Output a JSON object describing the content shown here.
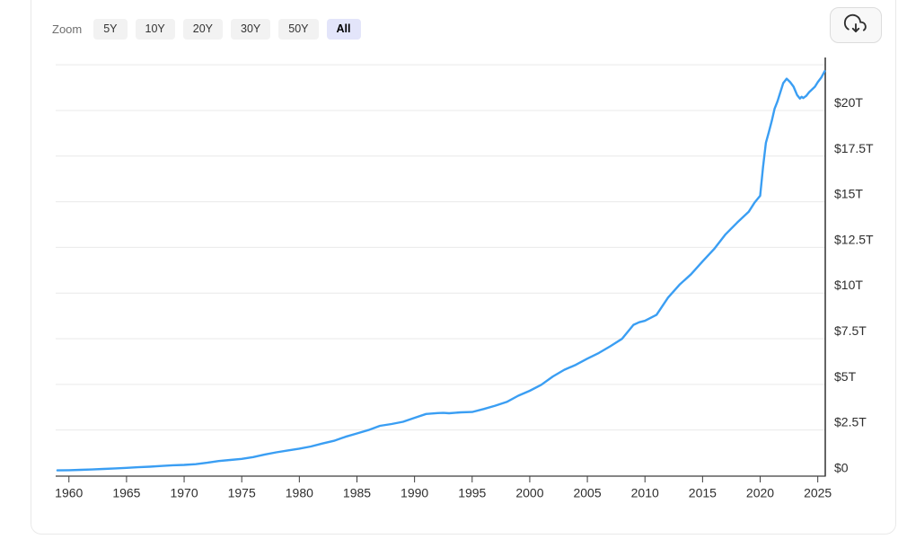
{
  "toolbar": {
    "zoom_label": "Zoom",
    "buttons": [
      {
        "label": "5Y",
        "active": false
      },
      {
        "label": "10Y",
        "active": false
      },
      {
        "label": "20Y",
        "active": false
      },
      {
        "label": "30Y",
        "active": false
      },
      {
        "label": "50Y",
        "active": false
      },
      {
        "label": "All",
        "active": true
      }
    ],
    "active_button_bg": "#e3e5fa",
    "button_bg": "#f2f2f2",
    "download_icon": "cloud-download-icon"
  },
  "chart_data": {
    "type": "line",
    "title": "",
    "xlabel": "",
    "ylabel": "",
    "grid": "horizontal",
    "legend": "none",
    "line_color": "#3a9ef3",
    "gridline_color": "#e9e9e9",
    "axis_color": "#3d3d3d",
    "x_range": [
      1958.85,
      2025.65
    ],
    "y_range": [
      0,
      22.9
    ],
    "x_ticks": [
      "1960",
      "1965",
      "1970",
      "1975",
      "1980",
      "1985",
      "1990",
      "1995",
      "2000",
      "2005",
      "2010",
      "2015",
      "2020",
      "2025"
    ],
    "x_tick_values": [
      1960,
      1965,
      1970,
      1975,
      1980,
      1985,
      1990,
      1995,
      2000,
      2005,
      2010,
      2015,
      2020,
      2025
    ],
    "y_ticks": [
      {
        "value": 0,
        "label": "$0"
      },
      {
        "value": 2.5,
        "label": "$2.5T"
      },
      {
        "value": 5,
        "label": "$5T"
      },
      {
        "value": 7.5,
        "label": "$7.5T"
      },
      {
        "value": 10,
        "label": "$10T"
      },
      {
        "value": 12.5,
        "label": "$12.5T"
      },
      {
        "value": 15,
        "label": "$15T"
      },
      {
        "value": 17.5,
        "label": "$17.5T"
      },
      {
        "value": 20,
        "label": "$20T"
      },
      {
        "value": 22.5,
        "label": ""
      }
    ],
    "series": [
      {
        "name": "",
        "points": [
          [
            1959,
            0.29
          ],
          [
            1960,
            0.3
          ],
          [
            1961,
            0.32
          ],
          [
            1962,
            0.34
          ],
          [
            1963,
            0.37
          ],
          [
            1964,
            0.4
          ],
          [
            1965,
            0.43
          ],
          [
            1966,
            0.46
          ],
          [
            1967,
            0.49
          ],
          [
            1968,
            0.53
          ],
          [
            1969,
            0.57
          ],
          [
            1970,
            0.59
          ],
          [
            1971,
            0.63
          ],
          [
            1972,
            0.71
          ],
          [
            1973,
            0.8
          ],
          [
            1974,
            0.86
          ],
          [
            1975,
            0.92
          ],
          [
            1976,
            1.02
          ],
          [
            1977,
            1.16
          ],
          [
            1978,
            1.28
          ],
          [
            1979,
            1.38
          ],
          [
            1980,
            1.48
          ],
          [
            1981,
            1.6
          ],
          [
            1982,
            1.76
          ],
          [
            1983,
            1.91
          ],
          [
            1984,
            2.13
          ],
          [
            1985,
            2.31
          ],
          [
            1986,
            2.5
          ],
          [
            1987,
            2.73
          ],
          [
            1988,
            2.83
          ],
          [
            1989,
            2.95
          ],
          [
            1990,
            3.17
          ],
          [
            1991,
            3.38
          ],
          [
            1992,
            3.43
          ],
          [
            1992.5,
            3.44
          ],
          [
            1993,
            3.42
          ],
          [
            1994,
            3.47
          ],
          [
            1995,
            3.49
          ],
          [
            1996,
            3.65
          ],
          [
            1997,
            3.83
          ],
          [
            1998,
            4.04
          ],
          [
            1999,
            4.38
          ],
          [
            2000,
            4.65
          ],
          [
            2001,
            4.98
          ],
          [
            2002,
            5.43
          ],
          [
            2003,
            5.8
          ],
          [
            2004,
            6.07
          ],
          [
            2005,
            6.41
          ],
          [
            2006,
            6.72
          ],
          [
            2007,
            7.09
          ],
          [
            2008,
            7.49
          ],
          [
            2009,
            8.26
          ],
          [
            2009.5,
            8.4
          ],
          [
            2010,
            8.48
          ],
          [
            2011,
            8.81
          ],
          [
            2012,
            9.75
          ],
          [
            2013,
            10.46
          ],
          [
            2014,
            11.03
          ],
          [
            2015,
            11.74
          ],
          [
            2016,
            12.41
          ],
          [
            2017,
            13.22
          ],
          [
            2018,
            13.86
          ],
          [
            2019,
            14.45
          ],
          [
            2019.5,
            14.94
          ],
          [
            2020,
            15.33
          ],
          [
            2020.25,
            16.9
          ],
          [
            2020.5,
            18.23
          ],
          [
            2020.75,
            18.8
          ],
          [
            2021,
            19.4
          ],
          [
            2021.25,
            20.1
          ],
          [
            2021.5,
            20.5
          ],
          [
            2021.75,
            21.0
          ],
          [
            2022,
            21.5
          ],
          [
            2022.3,
            21.74
          ],
          [
            2022.6,
            21.55
          ],
          [
            2022.9,
            21.3
          ],
          [
            2023.1,
            21.0
          ],
          [
            2023.2,
            20.85
          ],
          [
            2023.45,
            20.65
          ],
          [
            2023.6,
            20.75
          ],
          [
            2023.75,
            20.68
          ],
          [
            2024,
            20.8
          ],
          [
            2024.25,
            21.0
          ],
          [
            2024.5,
            21.15
          ],
          [
            2024.75,
            21.3
          ],
          [
            2025,
            21.55
          ],
          [
            2025.3,
            21.8
          ],
          [
            2025.6,
            22.15
          ]
        ]
      }
    ]
  }
}
